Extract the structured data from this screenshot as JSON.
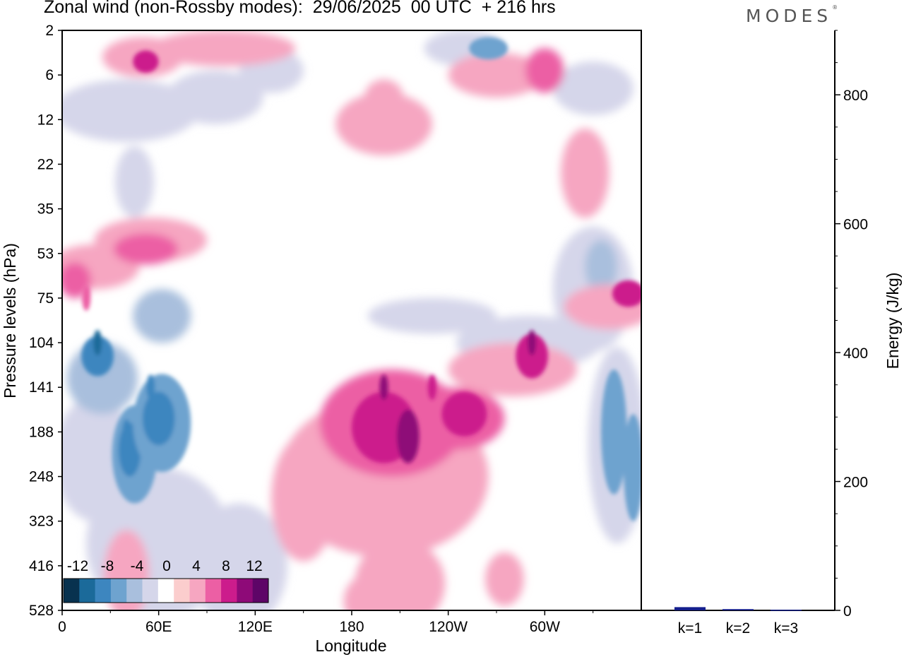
{
  "title": "Zonal wind (non-Rossby modes):  29/06/2025  00 UTC  + 216 hrs",
  "logo": "MODES",
  "logo_mark": "®",
  "colors": {
    "scale": [
      "#08324f",
      "#1b6a9a",
      "#3d86bf",
      "#6ea3cf",
      "#a9bfdd",
      "#d5d6ea",
      "#ffffff",
      "#fbcdcd",
      "#f6a6c1",
      "#ec5fa4",
      "#cc1c8c",
      "#8e0a78",
      "#5e0567"
    ],
    "bar": "#141e8c"
  },
  "chart_data": [
    {
      "type": "heatmap",
      "title": "Zonal wind (non-Rossby modes):  29/06/2025  00 UTC  + 216 hrs",
      "xlabel": "Longitude",
      "ylabel": "Pressure levels (hPa)",
      "x_ticks": [
        "0",
        "60E",
        "120E",
        "180",
        "120W",
        "60W"
      ],
      "y_ticks": [
        "2",
        "6",
        "12",
        "22",
        "35",
        "53",
        "75",
        "104",
        "141",
        "188",
        "248",
        "323",
        "416",
        "528"
      ],
      "colorbar_labels": [
        "-12",
        "-8",
        "-4",
        "0",
        "4",
        "8",
        "12"
      ],
      "features": [
        {
          "lon": 200,
          "level": "141",
          "value": 10
        },
        {
          "lon": 230,
          "level": "141",
          "value": 8
        },
        {
          "lon": 292,
          "level": "104",
          "value": 10
        },
        {
          "lon": 22,
          "level": "104",
          "value": -10
        },
        {
          "lon": 15,
          "level": "75",
          "value": 6
        },
        {
          "lon": 40,
          "level": "188",
          "value": -9
        },
        {
          "lon": 55,
          "level": "141",
          "value": -9
        },
        {
          "lon": 345,
          "level": "188",
          "value": -7
        }
      ]
    },
    {
      "type": "bar",
      "ylabel": "Energy (J/kg)",
      "categories": [
        "k=1",
        "k=2",
        "k=3"
      ],
      "values": [
        5,
        2,
        1
      ],
      "ylim": [
        0,
        900
      ],
      "y_ticks": [
        "0",
        "200",
        "400",
        "600",
        "800"
      ]
    }
  ]
}
